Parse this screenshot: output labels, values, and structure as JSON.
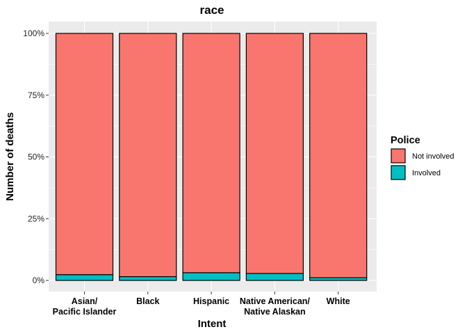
{
  "chart_data": {
    "type": "bar",
    "stacked": true,
    "percent": true,
    "title": "race",
    "xlabel": "Intent",
    "ylabel": "Number of deaths",
    "ylim": [
      0,
      1
    ],
    "yticks": [
      "0%",
      "25%",
      "50%",
      "75%",
      "100%"
    ],
    "yticks_values": [
      0,
      0.25,
      0.5,
      0.75,
      1
    ],
    "categories": [
      [
        "Asian/",
        "Pacific Islander"
      ],
      [
        "Black"
      ],
      [
        "Hispanic"
      ],
      [
        "Native American/",
        "Native Alaskan"
      ],
      [
        "White"
      ]
    ],
    "series": [
      {
        "name": "Not involved",
        "color": "#F8766D",
        "values": [
          0.977,
          0.985,
          0.969,
          0.972,
          0.989
        ]
      },
      {
        "name": "Involved",
        "color": "#00BFC4",
        "values": [
          0.023,
          0.015,
          0.031,
          0.028,
          0.011
        ]
      }
    ],
    "legend": {
      "title": "Police",
      "position": "right"
    },
    "grid": true,
    "panel_background": "#EBEBEB"
  }
}
